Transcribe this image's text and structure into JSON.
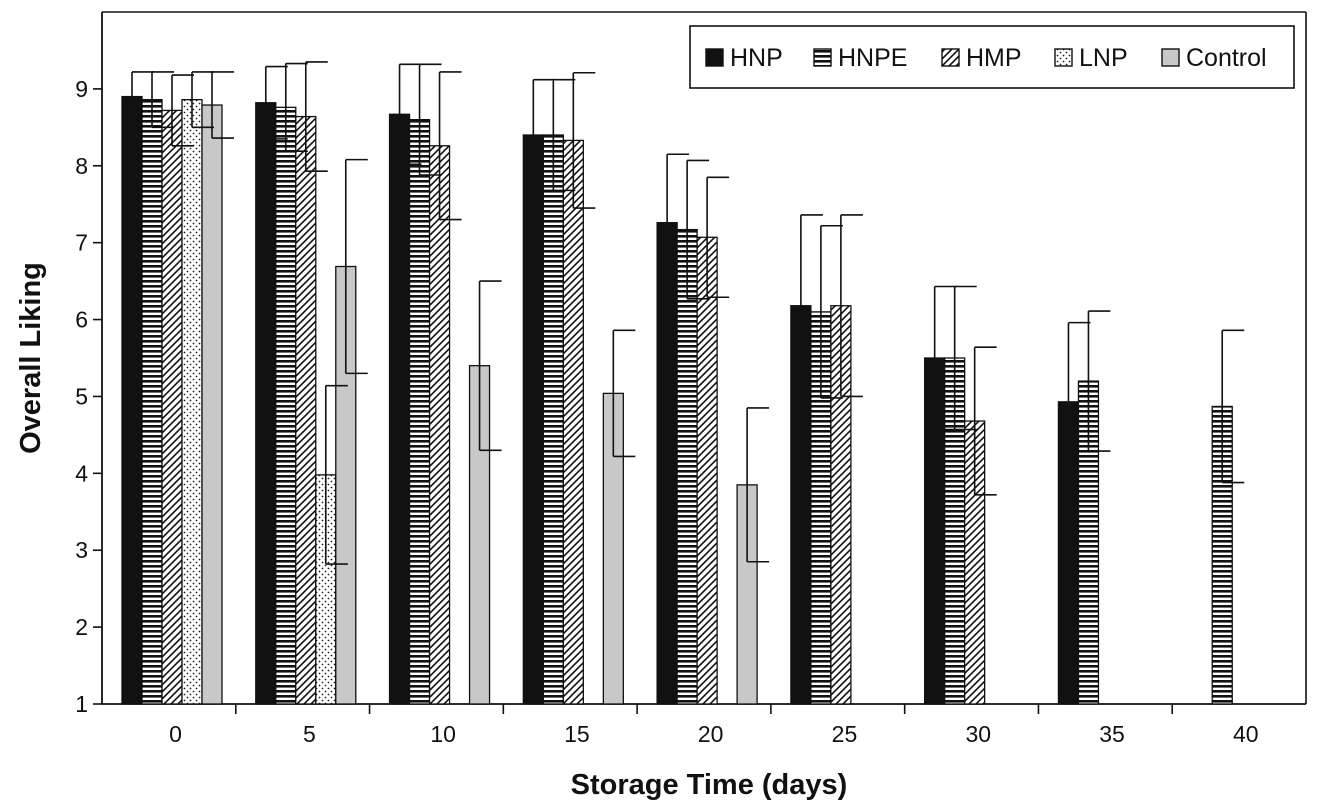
{
  "chart_data": {
    "type": "bar",
    "title": "",
    "xlabel": "Storage Time (days)",
    "ylabel": "Overall Liking",
    "ylim": [
      1,
      10
    ],
    "yticks": [
      1,
      2,
      3,
      4,
      5,
      6,
      7,
      8,
      9
    ],
    "categories": [
      "0",
      "5",
      "10",
      "15",
      "20",
      "25",
      "30",
      "35",
      "40"
    ],
    "legend_position": "top-right",
    "series": [
      {
        "name": "HNP",
        "pattern": "solid-black",
        "values": [
          8.9,
          8.82,
          8.67,
          8.4,
          7.26,
          6.18,
          5.5,
          4.93,
          null
        ],
        "errors": [
          0.32,
          0.47,
          0.65,
          0.72,
          0.89,
          1.18,
          0.93,
          1.03,
          null
        ]
      },
      {
        "name": "HNPE",
        "pattern": "horizontal-stripes",
        "values": [
          8.86,
          8.76,
          8.6,
          8.4,
          7.17,
          6.1,
          5.5,
          5.2,
          4.87
        ],
        "errors": [
          0.36,
          0.57,
          0.72,
          0.72,
          0.9,
          1.12,
          0.93,
          0.91,
          0.99
        ]
      },
      {
        "name": "HMP",
        "pattern": "diagonal-hatch",
        "values": [
          8.72,
          8.64,
          8.26,
          8.33,
          7.07,
          6.18,
          4.68,
          null,
          null
        ],
        "errors": [
          0.46,
          0.71,
          0.96,
          0.88,
          0.78,
          1.18,
          0.96,
          null,
          null
        ]
      },
      {
        "name": "LNP",
        "pattern": "dotted",
        "values": [
          8.86,
          3.98,
          null,
          null,
          null,
          null,
          null,
          null,
          null
        ],
        "errors": [
          0.36,
          1.16,
          null,
          null,
          null,
          null,
          null,
          null,
          null
        ]
      },
      {
        "name": "Control",
        "pattern": "light-gray",
        "values": [
          8.79,
          6.69,
          5.4,
          5.04,
          3.85,
          null,
          null,
          null,
          null
        ],
        "errors": [
          0.43,
          1.39,
          1.1,
          0.82,
          1.0,
          null,
          null,
          null,
          null
        ]
      }
    ]
  }
}
